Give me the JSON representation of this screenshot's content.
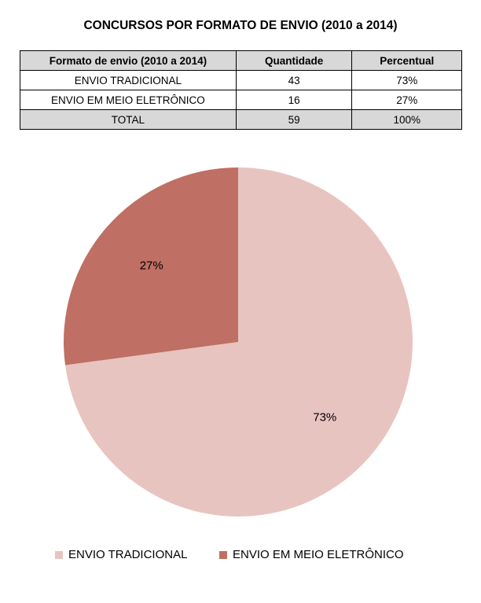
{
  "title": "CONCURSOS POR FORMATO DE ENVIO (2010 a 2014)",
  "table": {
    "headers": [
      "Formato de envio (2010 a 2014)",
      "Quantidade",
      "Percentual"
    ],
    "rows": [
      [
        "ENVIO TRADICIONAL",
        "43",
        "73%"
      ],
      [
        "ENVIO EM MEIO ELETRÔNICO",
        "16",
        "27%"
      ]
    ],
    "total": [
      "TOTAL",
      "59",
      "100%"
    ]
  },
  "chart_data": {
    "type": "pie",
    "title": "",
    "categories": [
      "ENVIO TRADICIONAL",
      "ENVIO EM MEIO ELETRÔNICO"
    ],
    "values": [
      43,
      16
    ],
    "data_labels": [
      "73%",
      "27%"
    ],
    "colors": [
      "#e8c4c0",
      "#bf6f63"
    ],
    "legend_position": "bottom"
  }
}
